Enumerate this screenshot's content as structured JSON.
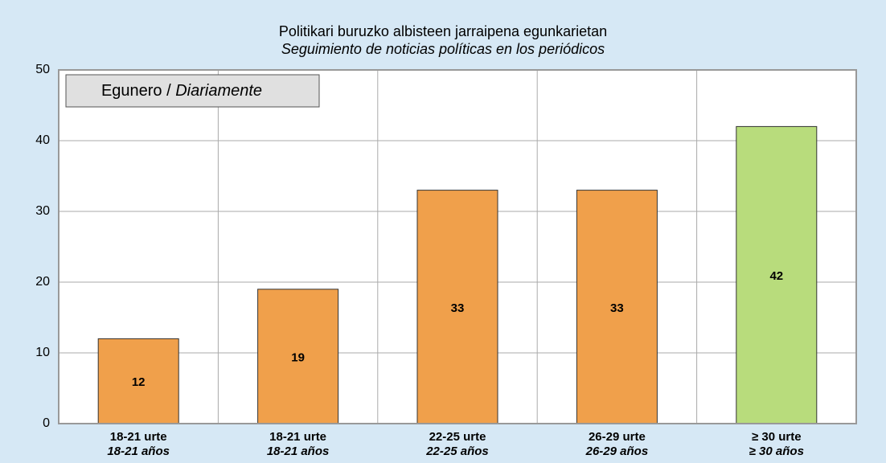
{
  "chart_data": {
    "type": "bar",
    "title": "Politikari buruzko albisteen jarraipena egunkarietan",
    "subtitle": "Seguimiento de noticias políticas en los periódicos",
    "legend_label": [
      "Egunero / ",
      "Diariamente"
    ],
    "categories": [
      [
        "18-21 urte",
        "18-21 años"
      ],
      [
        "18-21 urte",
        "18-21 años"
      ],
      [
        "22-25 urte",
        "22-25 años"
      ],
      [
        "26-29 urte",
        "26-29 años"
      ],
      [
        "≥ 30 urte",
        "≥ 30 años"
      ]
    ],
    "values": [
      12,
      19,
      33,
      33,
      42
    ],
    "colors": [
      "#f0a04b",
      "#f0a04b",
      "#f0a04b",
      "#f0a04b",
      "#b8dc7c"
    ],
    "ylim": [
      0,
      50
    ],
    "yticks": [
      0,
      10,
      20,
      30,
      40,
      50
    ],
    "grid": true
  }
}
